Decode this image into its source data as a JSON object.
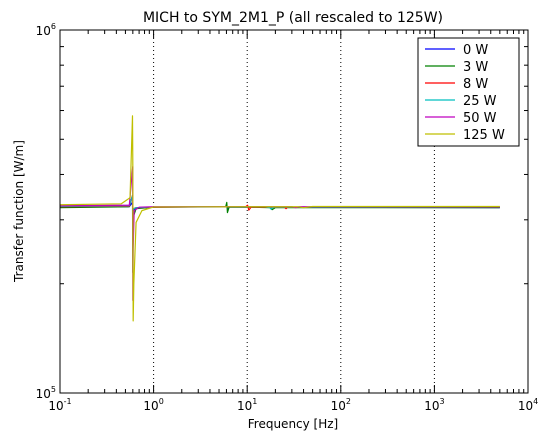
{
  "chart_data": {
    "type": "line",
    "title": "MICH to SYM_2M1_P (all rescaled to 125W)",
    "xlabel": "Frequency [Hz]",
    "ylabel": "Transfer function [W/m]",
    "xscale": "log",
    "yscale": "log",
    "xlim": [
      0.1,
      10000
    ],
    "ylim": [
      100000,
      1000000
    ],
    "grid": "x-major-dotted",
    "legend_position": "top-right",
    "x_ticks": [
      {
        "base": "10",
        "exp": "-1",
        "value": 0.1
      },
      {
        "base": "10",
        "exp": "0",
        "value": 1
      },
      {
        "base": "10",
        "exp": "1",
        "value": 10
      },
      {
        "base": "10",
        "exp": "2",
        "value": 100
      },
      {
        "base": "10",
        "exp": "3",
        "value": 1000
      },
      {
        "base": "10",
        "exp": "4",
        "value": 10000
      }
    ],
    "y_ticks": [
      {
        "base": "10",
        "exp": "5",
        "value": 100000
      },
      {
        "base": "10",
        "exp": "6",
        "value": 1000000
      }
    ],
    "series": [
      {
        "name": "0 W",
        "color": "#0000ff",
        "points": [
          [
            0.1,
            325000
          ],
          [
            0.55,
            326000
          ],
          [
            0.595,
            335000
          ],
          [
            0.6,
            305000
          ],
          [
            0.605,
            318000
          ],
          [
            0.65,
            323000
          ],
          [
            1.0,
            325000
          ],
          [
            5.8,
            325500
          ],
          [
            6.0,
            327000
          ],
          [
            6.2,
            323000
          ],
          [
            6.5,
            325000
          ],
          [
            10.0,
            325000
          ],
          [
            5000,
            324000
          ]
        ]
      },
      {
        "name": "3 W",
        "color": "#008000",
        "points": [
          [
            0.1,
            324000
          ],
          [
            0.55,
            326000
          ],
          [
            0.595,
            350000
          ],
          [
            0.6,
            215000
          ],
          [
            0.605,
            305000
          ],
          [
            0.65,
            322000
          ],
          [
            1.0,
            325000
          ],
          [
            5.9,
            326000
          ],
          [
            6.05,
            335000
          ],
          [
            6.15,
            314000
          ],
          [
            6.4,
            325000
          ],
          [
            10.0,
            325000
          ],
          [
            17.5,
            324000
          ],
          [
            18.5,
            320000
          ],
          [
            20.0,
            324000
          ],
          [
            5000,
            324000
          ]
        ]
      },
      {
        "name": "8 W",
        "color": "#ff0000",
        "points": [
          [
            0.1,
            326000
          ],
          [
            0.55,
            327000
          ],
          [
            0.596,
            350000
          ],
          [
            0.6,
            320000
          ],
          [
            0.605,
            322000
          ],
          [
            0.65,
            324000
          ],
          [
            1.0,
            325000
          ],
          [
            9.6,
            326000
          ],
          [
            10.1,
            329000
          ],
          [
            10.4,
            319000
          ],
          [
            11.0,
            325000
          ],
          [
            25.0,
            325000
          ],
          [
            26.0,
            322000
          ],
          [
            27.0,
            325000
          ],
          [
            5000,
            325000
          ]
        ]
      },
      {
        "name": "25 W",
        "color": "#00bfbf",
        "points": [
          [
            0.1,
            327000
          ],
          [
            0.55,
            328000
          ],
          [
            0.597,
            350000
          ],
          [
            0.6,
            315000
          ],
          [
            0.605,
            321000
          ],
          [
            0.65,
            324000
          ],
          [
            1.0,
            325500
          ],
          [
            15.0,
            326000
          ],
          [
            17.5,
            324000
          ],
          [
            18.0,
            321000
          ],
          [
            19.0,
            325000
          ],
          [
            5000,
            325500
          ]
        ]
      },
      {
        "name": "50 W",
        "color": "#bf00bf",
        "points": [
          [
            0.1,
            328000
          ],
          [
            0.55,
            329000
          ],
          [
            0.598,
            420000
          ],
          [
            0.6,
            180000
          ],
          [
            0.605,
            250000
          ],
          [
            0.62,
            318000
          ],
          [
            0.7,
            325000
          ],
          [
            1.0,
            326000
          ],
          [
            30.0,
            326000
          ],
          [
            33.0,
            324000
          ],
          [
            36.0,
            326000
          ],
          [
            5000,
            326000
          ]
        ]
      },
      {
        "name": "125 W",
        "color": "#bfbf00",
        "points": [
          [
            0.1,
            330000
          ],
          [
            0.45,
            332000
          ],
          [
            0.56,
            345000
          ],
          [
            0.595,
            580000
          ],
          [
            0.6,
            420000
          ],
          [
            0.601,
            270000
          ],
          [
            0.605,
            158000
          ],
          [
            0.615,
            200000
          ],
          [
            0.65,
            295000
          ],
          [
            0.75,
            318000
          ],
          [
            1.0,
            325500
          ],
          [
            35.0,
            326000
          ],
          [
            40.0,
            324000
          ],
          [
            50.0,
            326500
          ],
          [
            5000,
            326500
          ]
        ]
      }
    ]
  }
}
